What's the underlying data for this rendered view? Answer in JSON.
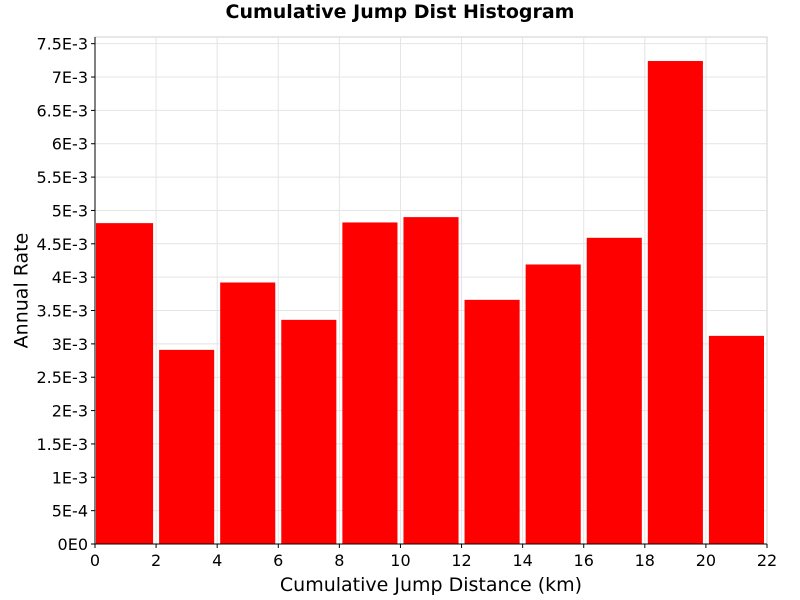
{
  "chart_data": {
    "type": "bar",
    "title": "Cumulative Jump Dist Histogram",
    "xlabel": "Cumulative Jump Distance (km)",
    "ylabel": "Annual Rate",
    "xlim": [
      0,
      22
    ],
    "ylim": [
      0,
      0.0076
    ],
    "grid": true,
    "legend": "none",
    "bar_color": "#ff0000",
    "x_ticks": [
      {
        "value": 0,
        "label": "0"
      },
      {
        "value": 2,
        "label": "2"
      },
      {
        "value": 4,
        "label": "4"
      },
      {
        "value": 6,
        "label": "6"
      },
      {
        "value": 8,
        "label": "8"
      },
      {
        "value": 10,
        "label": "10"
      },
      {
        "value": 12,
        "label": "12"
      },
      {
        "value": 14,
        "label": "14"
      },
      {
        "value": 16,
        "label": "16"
      },
      {
        "value": 18,
        "label": "18"
      },
      {
        "value": 20,
        "label": "20"
      },
      {
        "value": 22,
        "label": "22"
      }
    ],
    "y_ticks": [
      {
        "value": 0,
        "label": "0E0"
      },
      {
        "value": 0.0005,
        "label": "5E-4"
      },
      {
        "value": 0.001,
        "label": "1E-3"
      },
      {
        "value": 0.0015,
        "label": "1.5E-3"
      },
      {
        "value": 0.002,
        "label": "2E-3"
      },
      {
        "value": 0.0025,
        "label": "2.5E-3"
      },
      {
        "value": 0.003,
        "label": "3E-3"
      },
      {
        "value": 0.0035,
        "label": "3.5E-3"
      },
      {
        "value": 0.004,
        "label": "4E-3"
      },
      {
        "value": 0.0045,
        "label": "4.5E-3"
      },
      {
        "value": 0.005,
        "label": "5E-3"
      },
      {
        "value": 0.0055,
        "label": "5.5E-3"
      },
      {
        "value": 0.006,
        "label": "6E-3"
      },
      {
        "value": 0.0065,
        "label": "6.5E-3"
      },
      {
        "value": 0.007,
        "label": "7E-3"
      },
      {
        "value": 0.0075,
        "label": "7.5E-3"
      }
    ],
    "bins": [
      {
        "x0": 0,
        "x1": 2,
        "value": 0.00481
      },
      {
        "x0": 2,
        "x1": 4,
        "value": 0.00291
      },
      {
        "x0": 4,
        "x1": 6,
        "value": 0.00392
      },
      {
        "x0": 6,
        "x1": 8,
        "value": 0.00336
      },
      {
        "x0": 8,
        "x1": 10,
        "value": 0.00482
      },
      {
        "x0": 10,
        "x1": 12,
        "value": 0.0049
      },
      {
        "x0": 12,
        "x1": 14,
        "value": 0.00366
      },
      {
        "x0": 14,
        "x1": 16,
        "value": 0.00419
      },
      {
        "x0": 16,
        "x1": 18,
        "value": 0.00459
      },
      {
        "x0": 18,
        "x1": 20,
        "value": 0.00724
      },
      {
        "x0": 20,
        "x1": 22,
        "value": 0.00312
      }
    ]
  }
}
